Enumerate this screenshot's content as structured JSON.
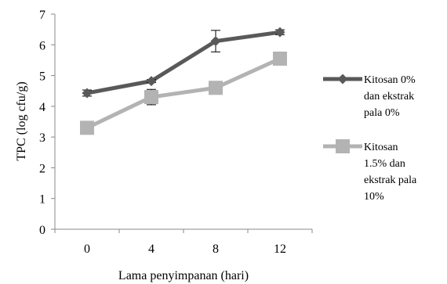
{
  "chart_data": {
    "type": "line",
    "title": "",
    "xlabel": "Lama penyimpanan (hari)",
    "ylabel": "TPC (log cfu/g)",
    "categories": [
      "0",
      "4",
      "8",
      "12"
    ],
    "ylim": [
      0,
      7
    ],
    "yticks": [
      "0",
      "1",
      "2",
      "3",
      "4",
      "5",
      "6",
      "7"
    ],
    "grid": false,
    "legend_position": "right",
    "series": [
      {
        "name": "Kitosan 0% dan ekstrak pala 0%",
        "legend_lines": [
          "Kitosan 0%",
          "dan ekstrak",
          "pala 0%"
        ],
        "values": [
          4.43,
          4.82,
          6.12,
          6.41
        ],
        "errors": [
          0.1,
          0.05,
          0.35,
          0.08
        ],
        "color": "#595959",
        "marker": "diamond"
      },
      {
        "name": "Kitosan 1.5% dan ekstrak pala 10%",
        "legend_lines": [
          "Kitosan",
          "1.5%  dan",
          "ekstrak pala",
          "10%"
        ],
        "values": [
          3.3,
          4.3,
          4.6,
          5.55
        ],
        "errors": [
          0.05,
          0.25,
          0.05,
          0.05
        ],
        "color": "#b3b3b3",
        "marker": "square"
      }
    ]
  }
}
